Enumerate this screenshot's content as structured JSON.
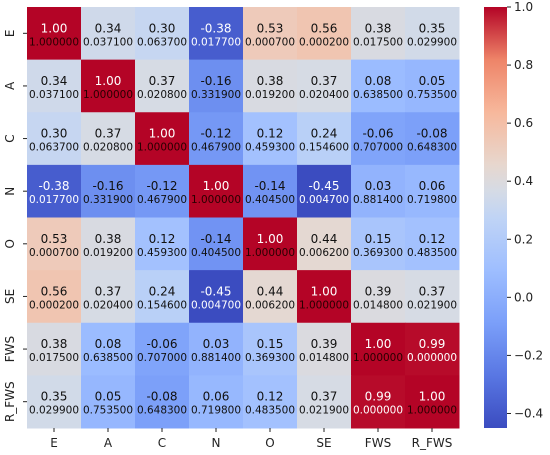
{
  "chart_data": {
    "type": "heatmap",
    "title": "",
    "xlabel": "",
    "ylabel": "",
    "x_labels": [
      "E",
      "A",
      "C",
      "N",
      "O",
      "SE",
      "FWS",
      "R_FWS"
    ],
    "y_labels": [
      "E",
      "A",
      "C",
      "N",
      "O",
      "SE",
      "FWS",
      "R_FWS"
    ],
    "correlations": [
      [
        "1.00",
        "0.34",
        "0.30",
        "-0.38",
        "0.53",
        "0.56",
        "0.38",
        "0.35"
      ],
      [
        "0.34",
        "1.00",
        "0.37",
        "-0.16",
        "0.38",
        "0.37",
        "0.08",
        "0.05"
      ],
      [
        "0.30",
        "0.37",
        "1.00",
        "-0.12",
        "0.12",
        "0.24",
        "-0.06",
        "-0.08"
      ],
      [
        "-0.38",
        "-0.16",
        "-0.12",
        "1.00",
        "-0.14",
        "-0.45",
        "0.03",
        "0.06"
      ],
      [
        "0.53",
        "0.38",
        "0.12",
        "-0.14",
        "1.00",
        "0.44",
        "0.15",
        "0.12"
      ],
      [
        "0.56",
        "0.37",
        "0.24",
        "-0.45",
        "0.44",
        "1.00",
        "0.39",
        "0.37"
      ],
      [
        "0.38",
        "0.08",
        "-0.06",
        "0.03",
        "0.15",
        "0.39",
        "1.00",
        "0.99"
      ],
      [
        "0.35",
        "0.05",
        "-0.08",
        "0.06",
        "0.12",
        "0.37",
        "0.99",
        "1.00"
      ]
    ],
    "p_values": [
      [
        "1.000000",
        "0.037100",
        "0.063700",
        "0.017700",
        "0.000700",
        "0.000200",
        "0.017500",
        "0.029900"
      ],
      [
        "0.037100",
        "1.000000",
        "0.020800",
        "0.331900",
        "0.019200",
        "0.020400",
        "0.638500",
        "0.753500"
      ],
      [
        "0.063700",
        "0.020800",
        "1.000000",
        "0.467900",
        "0.459300",
        "0.154600",
        "0.707000",
        "0.648300"
      ],
      [
        "0.017700",
        "0.331900",
        "0.467900",
        "1.000000",
        "0.404500",
        "0.004700",
        "0.881400",
        "0.719800"
      ],
      [
        "0.000700",
        "0.019200",
        "0.459300",
        "0.404500",
        "1.000000",
        "0.006200",
        "0.369300",
        "0.483500"
      ],
      [
        "0.000200",
        "0.020400",
        "0.154600",
        "0.004700",
        "0.006200",
        "1.000000",
        "0.014800",
        "0.021900"
      ],
      [
        "0.017500",
        "0.638500",
        "0.707000",
        "0.881400",
        "0.369300",
        "0.014800",
        "1.000000",
        "0.000000"
      ],
      [
        "0.029900",
        "0.753500",
        "0.648300",
        "0.719800",
        "0.483500",
        "0.021900",
        "0.000000",
        "1.000000"
      ]
    ],
    "colormap": "coolwarm",
    "vmin": -0.45,
    "vmax": 1.0,
    "colorbar_ticks": [
      "1.0",
      "0.8",
      "0.6",
      "0.4",
      "0.2",
      "0.0",
      "−0.2",
      "−0.4"
    ],
    "colorbar_tick_values": [
      1.0,
      0.8,
      0.6,
      0.4,
      0.2,
      0.0,
      -0.2,
      -0.4
    ],
    "grid": false,
    "legend": "colorbar-right"
  }
}
